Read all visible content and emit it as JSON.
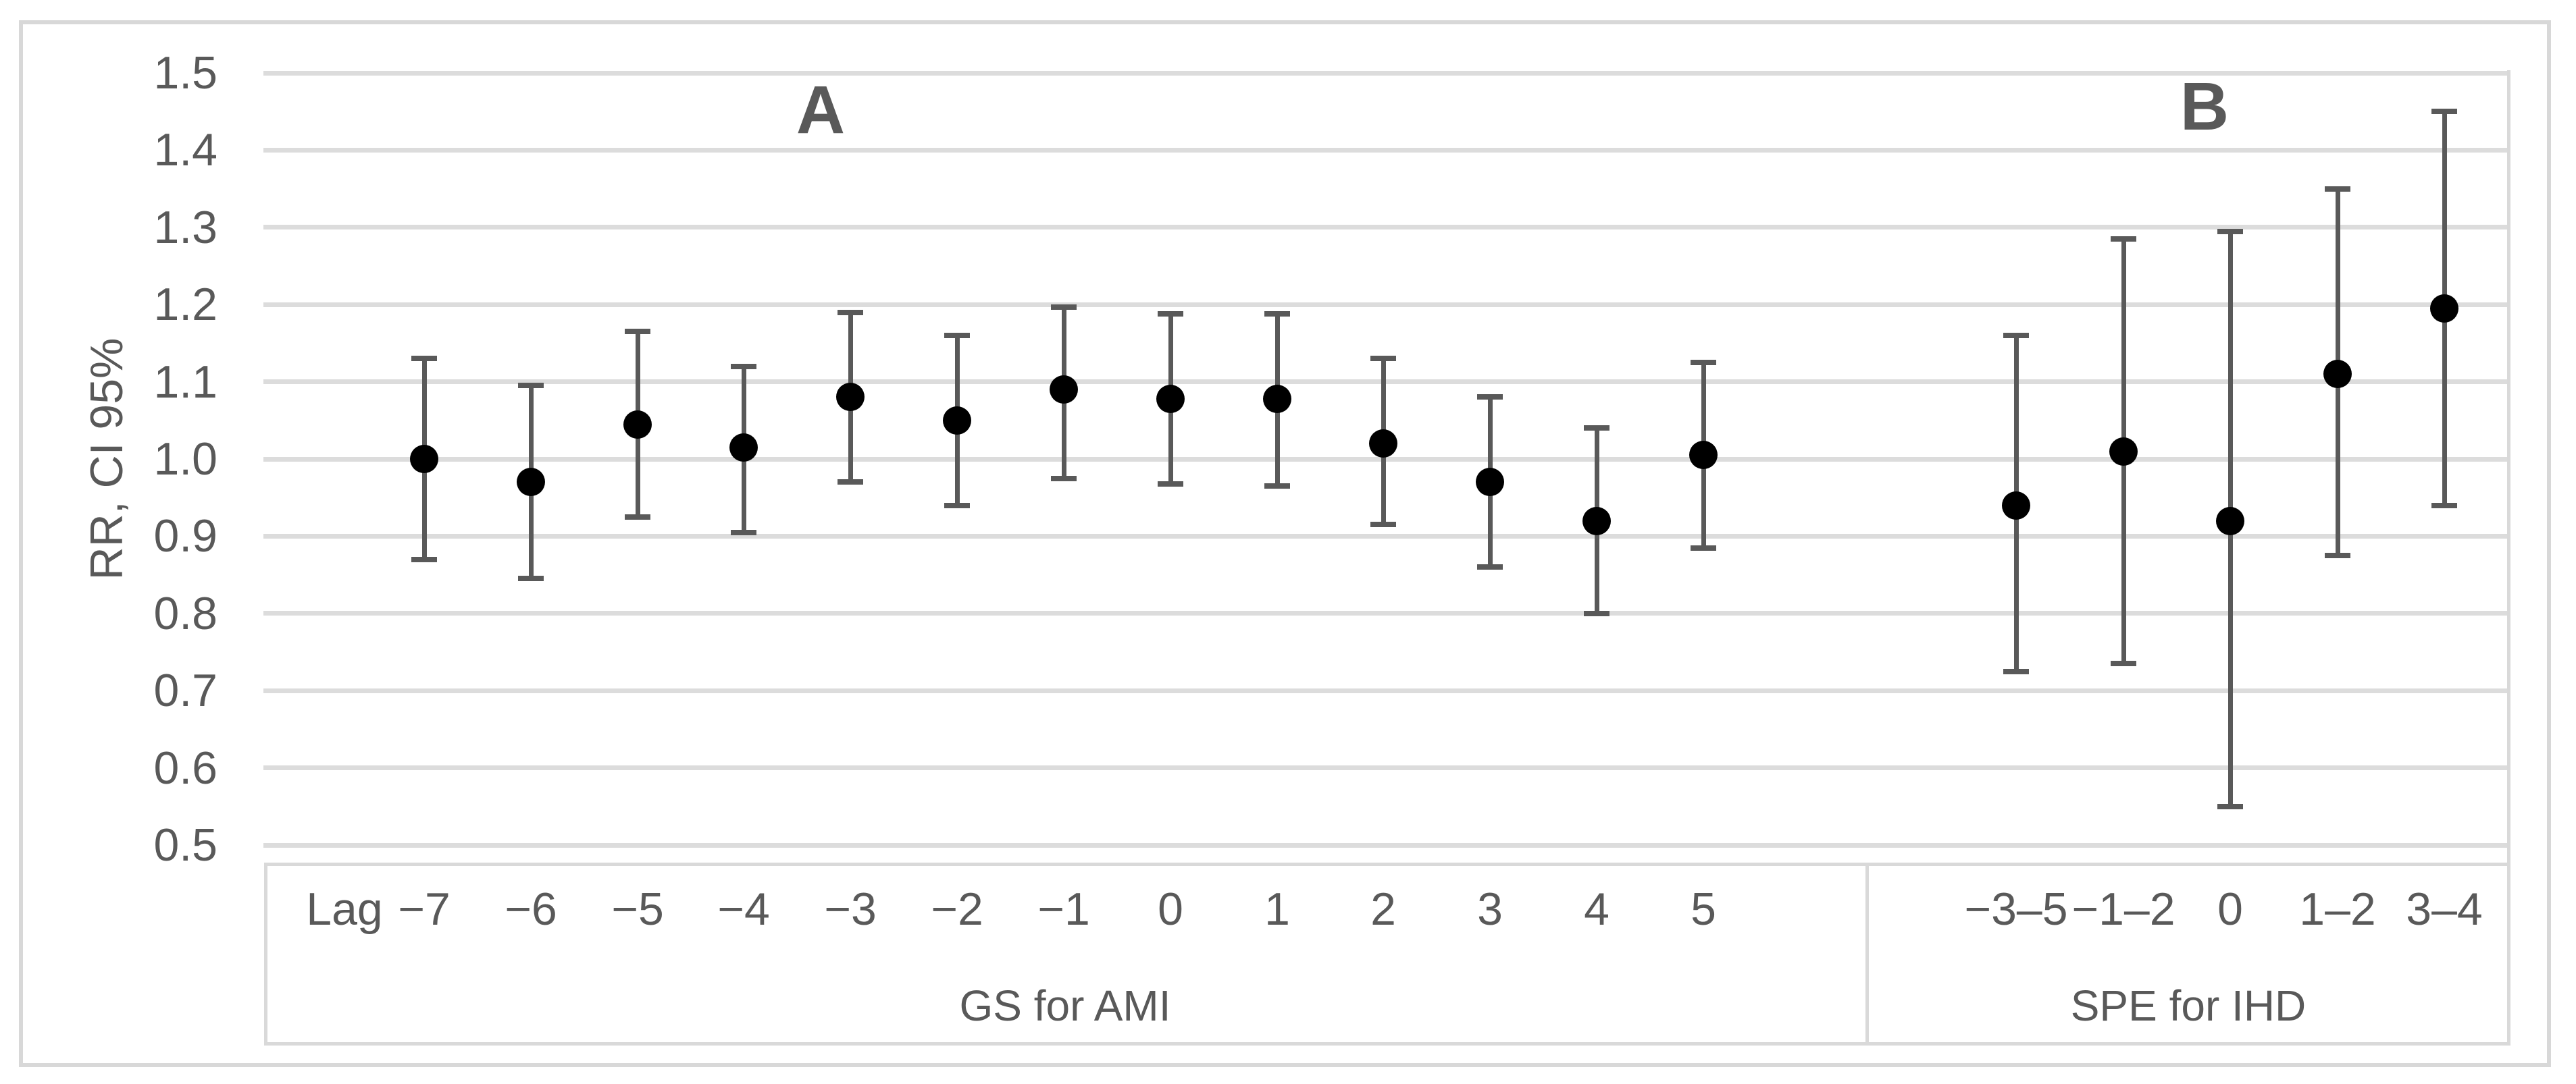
{
  "figure": {
    "y_axis_title": "RR, CI 95%",
    "x_axis_prefix": "Lag"
  },
  "colors": {
    "dot": "#000000",
    "whisker": "#595959",
    "gridline": "#dcdcdc",
    "border": "#d9d9d9",
    "text": "#595959",
    "background": "#ffffff"
  },
  "chart_data": {
    "type": "scatter",
    "subtype": "error-bar",
    "title": "",
    "ylabel": "RR, CI 95%",
    "ylim": [
      0.5,
      1.5
    ],
    "ytick_step": 0.1,
    "yticks": [
      "1.5",
      "1.4",
      "1.3",
      "1.2",
      "1.1",
      "1.0",
      "0.9",
      "0.8",
      "0.7",
      "0.6",
      "0.5"
    ],
    "grid": true,
    "legend": false,
    "x_axis_prefix": "Lag",
    "panels": [
      {
        "label": "A",
        "caption": "GS for AMI",
        "categories": [
          "−7",
          "−6",
          "−5",
          "−4",
          "−3",
          "−2",
          "−1",
          "0",
          "1",
          "2",
          "3",
          "4",
          "5"
        ],
        "points": [
          {
            "mid": 1.0,
            "lo": 0.87,
            "hi": 1.13
          },
          {
            "mid": 0.97,
            "lo": 0.845,
            "hi": 1.095
          },
          {
            "mid": 1.045,
            "lo": 0.925,
            "hi": 1.165
          },
          {
            "mid": 1.015,
            "lo": 0.905,
            "hi": 1.12
          },
          {
            "mid": 1.08,
            "lo": 0.97,
            "hi": 1.19
          },
          {
            "mid": 1.05,
            "lo": 0.94,
            "hi": 1.16
          },
          {
            "mid": 1.09,
            "lo": 0.975,
            "hi": 1.197
          },
          {
            "mid": 1.078,
            "lo": 0.968,
            "hi": 1.188
          },
          {
            "mid": 1.078,
            "lo": 0.965,
            "hi": 1.188
          },
          {
            "mid": 1.02,
            "lo": 0.915,
            "hi": 1.13
          },
          {
            "mid": 0.97,
            "lo": 0.86,
            "hi": 1.08
          },
          {
            "mid": 0.92,
            "lo": 0.8,
            "hi": 1.04
          },
          {
            "mid": 1.005,
            "lo": 0.885,
            "hi": 1.125
          }
        ]
      },
      {
        "label": "B",
        "caption": "SPE for IHD",
        "categories": [
          "−3–5",
          "−1–2",
          "0",
          "1–2",
          "3–4"
        ],
        "points": [
          {
            "mid": 0.94,
            "lo": 0.725,
            "hi": 1.16
          },
          {
            "mid": 1.01,
            "lo": 0.735,
            "hi": 1.285
          },
          {
            "mid": 0.92,
            "lo": 0.55,
            "hi": 1.295
          },
          {
            "mid": 1.11,
            "lo": 0.875,
            "hi": 1.35
          },
          {
            "mid": 1.195,
            "lo": 0.94,
            "hi": 1.45
          }
        ]
      }
    ]
  }
}
